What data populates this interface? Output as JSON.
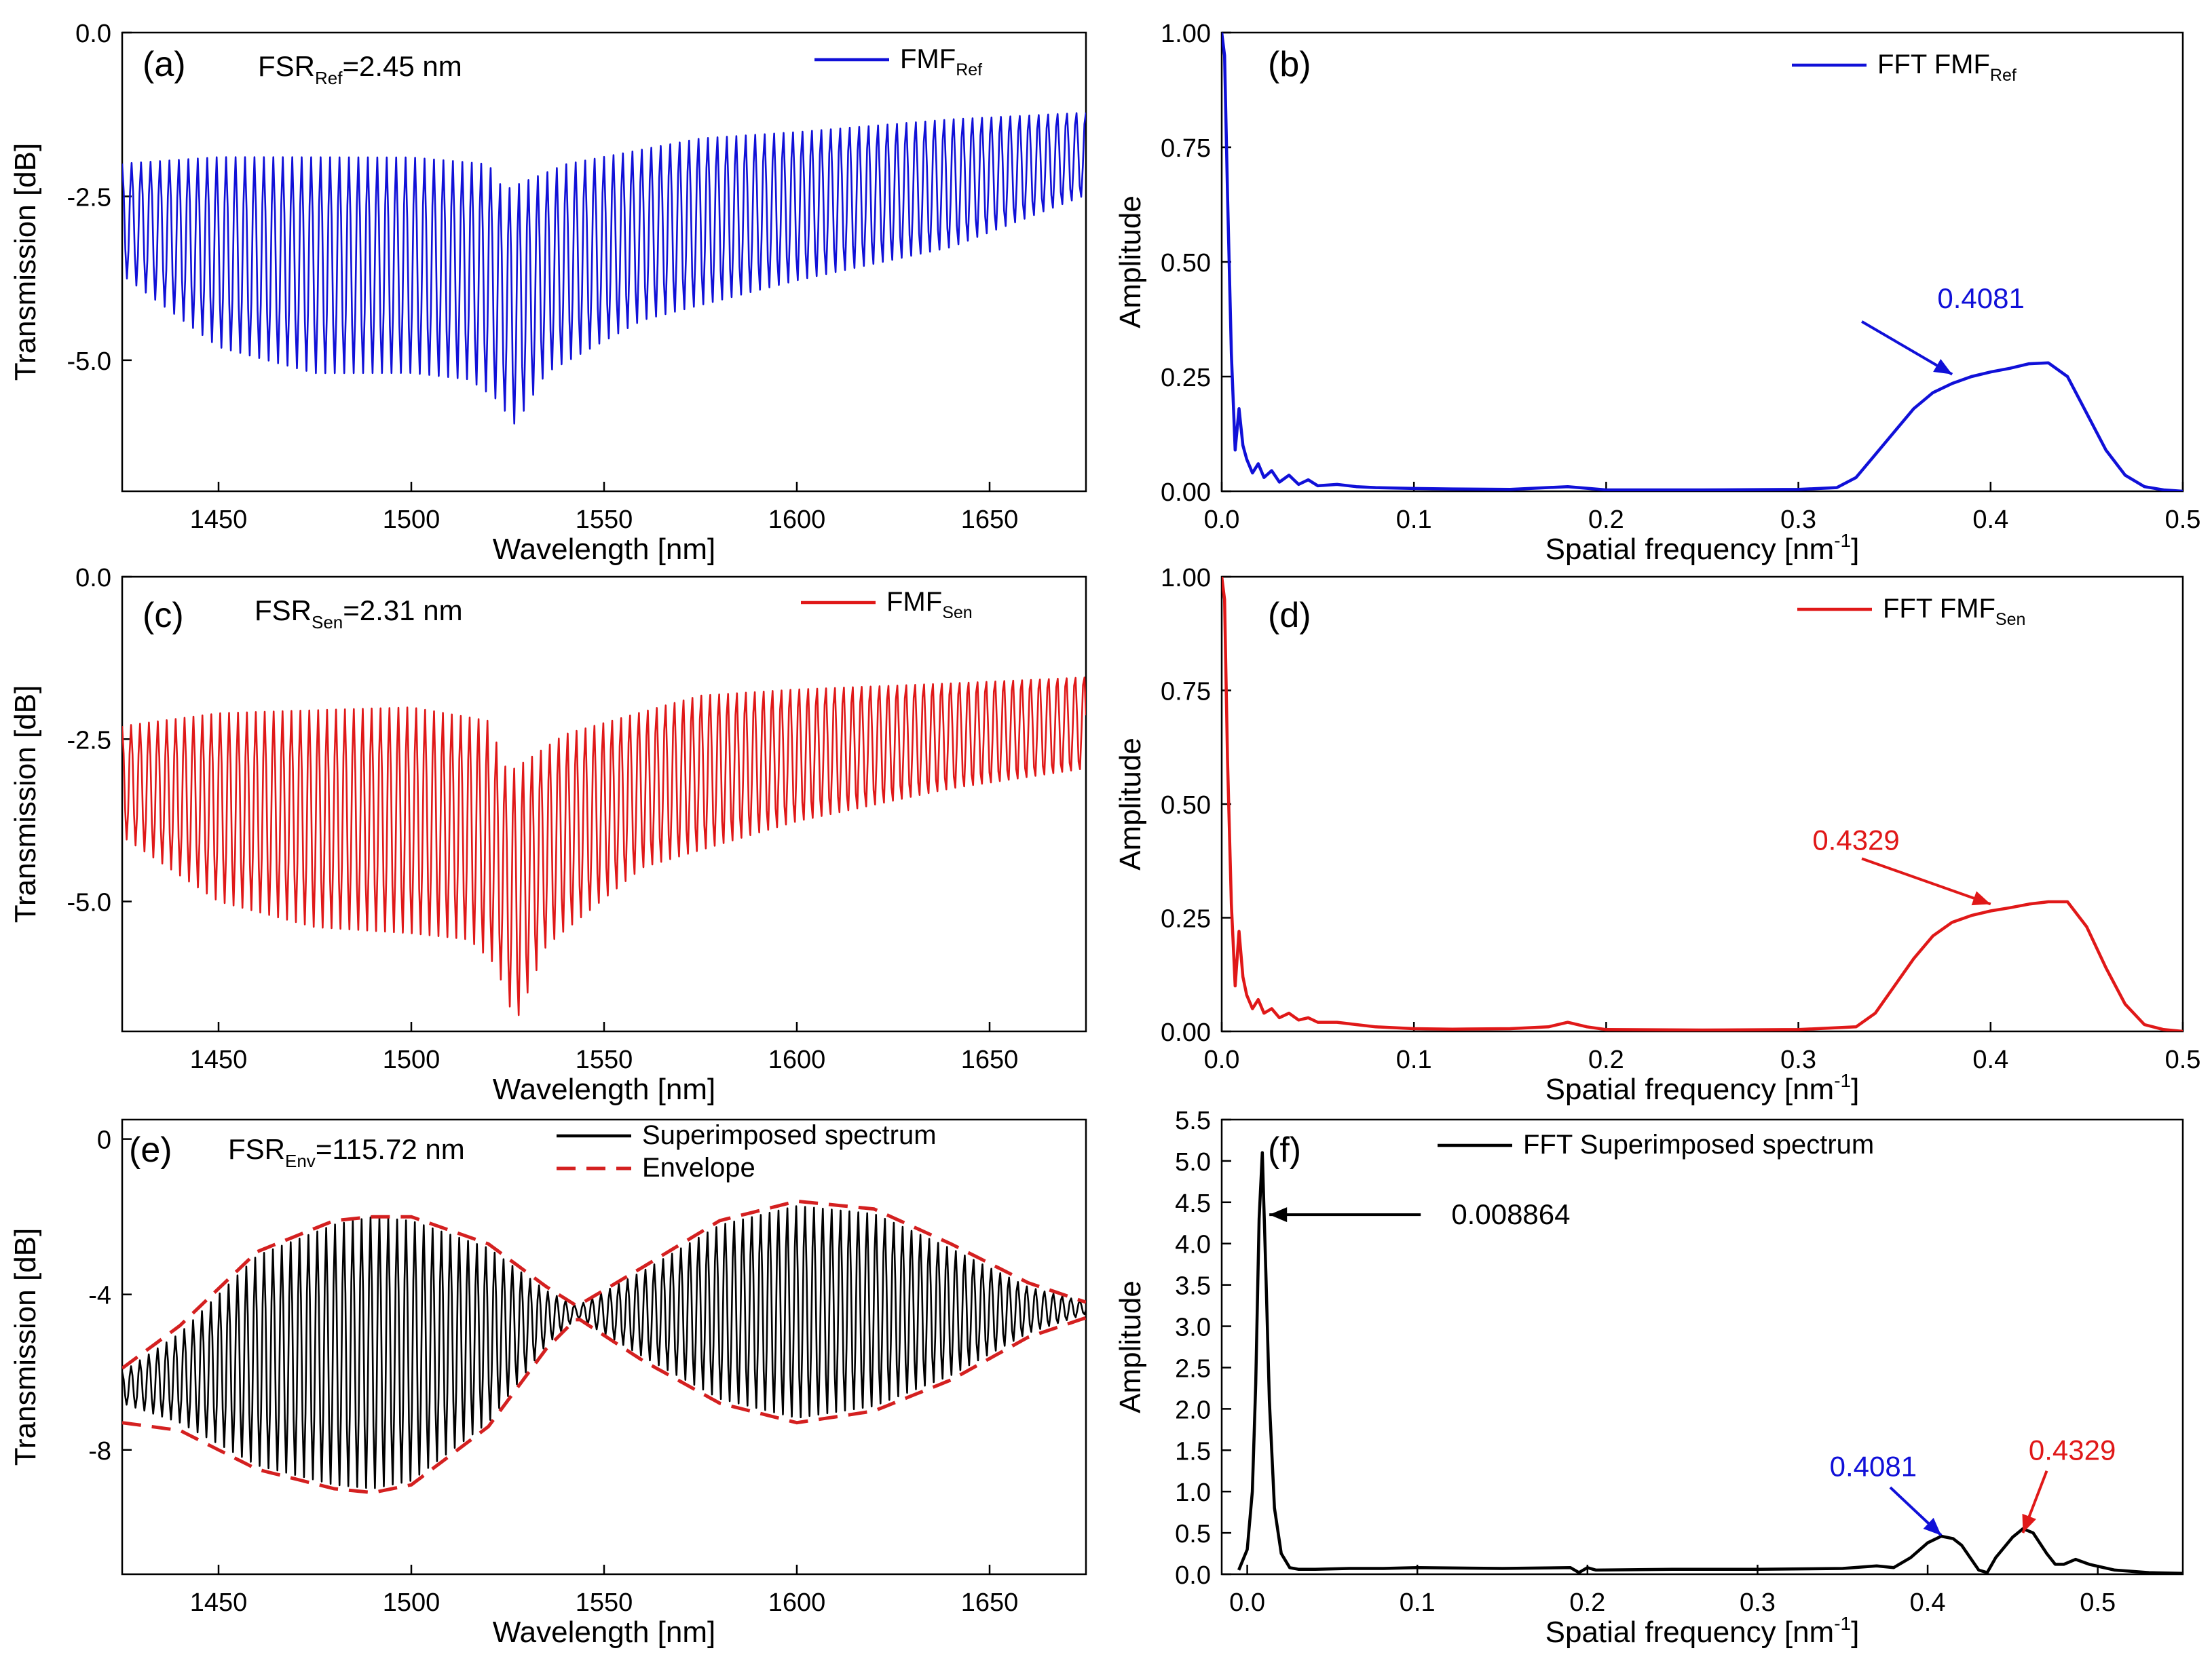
{
  "figure_title": "",
  "colors": {
    "blue": "#1010d8",
    "red": "#e01818",
    "black": "#000000",
    "envelope": "#d42020"
  },
  "chart_data": [
    {
      "id": "a",
      "type": "line",
      "panel_label": "(a)",
      "annotation_main": "FSR",
      "annotation_sub": "Ref",
      "annotation_rest": "=2.45 nm",
      "xlabel": "Wavelength [nm]",
      "ylabel": "Transmission [dB]",
      "xlim": [
        1425,
        1675
      ],
      "ylim": [
        -7.0,
        0.0
      ],
      "xticks": [
        1450,
        1500,
        1550,
        1600,
        1650
      ],
      "yticks": [
        "0.0",
        "-2.5",
        "-5.0"
      ],
      "yticks_values": [
        0.0,
        -2.5,
        -5.0
      ],
      "legend": [
        {
          "main": "FMF",
          "sub": "Ref",
          "color": "#1010d8",
          "style": "solid"
        }
      ],
      "series": [
        {
          "name": "FMF Ref",
          "color": "#1010d8",
          "fsr_nm": 2.45,
          "top_envelope": {
            "x": [
              1425,
              1450,
              1500,
              1520,
              1524,
              1540,
              1575,
              1600,
              1640,
              1675
            ],
            "y": [
              -2.0,
              -1.9,
              -1.9,
              -2.0,
              -2.4,
              -2.0,
              -1.6,
              -1.5,
              -1.3,
              -1.2
            ]
          },
          "bottom_envelope": {
            "x": [
              1425,
              1450,
              1475,
              1500,
              1515,
              1522,
              1527,
              1535,
              1560,
              1600,
              1640,
              1675
            ],
            "y": [
              -3.7,
              -4.8,
              -5.2,
              -5.2,
              -5.3,
              -5.6,
              -6.0,
              -5.2,
              -4.4,
              -3.8,
              -3.3,
              -2.5
            ]
          }
        }
      ]
    },
    {
      "id": "b",
      "type": "line",
      "panel_label": "(b)",
      "xlabel": "Spatial frequency [nm",
      "xlabel_sup": "-1",
      "xlabel_end": "]",
      "ylabel": "Amplitude",
      "xlim": [
        0.0,
        0.5
      ],
      "ylim": [
        0.0,
        1.0
      ],
      "xticks": [
        "0.0",
        "0.1",
        "0.2",
        "0.3",
        "0.4",
        "0.5"
      ],
      "xticks_values": [
        0.0,
        0.1,
        0.2,
        0.3,
        0.4,
        0.5
      ],
      "yticks": [
        "0.00",
        "0.25",
        "0.50",
        "0.75",
        "1.00"
      ],
      "yticks_values": [
        0.0,
        0.25,
        0.5,
        0.75,
        1.0
      ],
      "legend": [
        {
          "main": "FFT FMF",
          "sub": "Ref",
          "color": "#1010d8",
          "style": "solid"
        }
      ],
      "annotations": [
        {
          "text": "0.4081",
          "color": "#1010d8",
          "at": [
            0.395,
            0.95
          ],
          "arrow_to": [
            0.38,
            0.255
          ],
          "from": [
            0.333,
            0.37
          ]
        }
      ],
      "series": [
        {
          "name": "FFT FMF Ref",
          "color": "#1010d8",
          "x": [
            0.0,
            0.0015,
            0.003,
            0.005,
            0.007,
            0.009,
            0.011,
            0.013,
            0.016,
            0.019,
            0.022,
            0.026,
            0.03,
            0.035,
            0.04,
            0.045,
            0.05,
            0.06,
            0.07,
            0.08,
            0.1,
            0.12,
            0.15,
            0.18,
            0.2,
            0.25,
            0.3,
            0.32,
            0.33,
            0.34,
            0.35,
            0.36,
            0.37,
            0.38,
            0.39,
            0.4,
            0.41,
            0.42,
            0.43,
            0.44,
            0.45,
            0.46,
            0.47,
            0.48,
            0.49,
            0.5
          ],
          "values": [
            1.0,
            0.95,
            0.65,
            0.3,
            0.09,
            0.18,
            0.1,
            0.07,
            0.04,
            0.06,
            0.03,
            0.045,
            0.02,
            0.035,
            0.015,
            0.025,
            0.012,
            0.015,
            0.01,
            0.008,
            0.006,
            0.005,
            0.004,
            0.01,
            0.003,
            0.003,
            0.004,
            0.008,
            0.03,
            0.08,
            0.13,
            0.18,
            0.215,
            0.235,
            0.25,
            0.26,
            0.268,
            0.278,
            0.28,
            0.25,
            0.17,
            0.09,
            0.035,
            0.01,
            0.003,
            0.0
          ]
        }
      ]
    },
    {
      "id": "c",
      "type": "line",
      "panel_label": "(c)",
      "annotation_main": "FSR",
      "annotation_sub": "Sen",
      "annotation_rest": "=2.31 nm",
      "xlabel": "Wavelength [nm]",
      "ylabel": "Transmission [dB]",
      "xlim": [
        1425,
        1675
      ],
      "ylim": [
        -7.0,
        0.0
      ],
      "xticks": [
        1450,
        1500,
        1550,
        1600,
        1650
      ],
      "yticks": [
        "0.0",
        "-2.5",
        "-5.0"
      ],
      "yticks_values": [
        0.0,
        -2.5,
        -5.0
      ],
      "legend": [
        {
          "main": "FMF",
          "sub": "Sen",
          "color": "#e01818",
          "style": "solid"
        }
      ],
      "series": [
        {
          "name": "FMF Sen",
          "color": "#e01818",
          "fsr_nm": 2.31,
          "top_envelope": {
            "x": [
              1425,
              1450,
              1500,
              1520,
              1525,
              1540,
              1575,
              1600,
              1640,
              1675
            ],
            "y": [
              -2.3,
              -2.1,
              -2.0,
              -2.2,
              -3.0,
              -2.4,
              -1.8,
              -1.7,
              -1.6,
              -1.5
            ]
          },
          "bottom_envelope": {
            "x": [
              1425,
              1450,
              1475,
              1500,
              1515,
              1522,
              1527,
              1535,
              1560,
              1600,
              1640,
              1675
            ],
            "y": [
              -4.0,
              -5.0,
              -5.4,
              -5.5,
              -5.6,
              -6.0,
              -6.9,
              -5.7,
              -4.5,
              -3.8,
              -3.3,
              -3.0
            ]
          }
        }
      ]
    },
    {
      "id": "d",
      "type": "line",
      "panel_label": "(d)",
      "xlabel": "Spatial frequency [nm",
      "xlabel_sup": "-1",
      "xlabel_end": "]",
      "ylabel": "Amplitude",
      "xlim": [
        0.0,
        0.5
      ],
      "ylim": [
        0.0,
        1.0
      ],
      "xticks": [
        "0.0",
        "0.1",
        "0.2",
        "0.3",
        "0.4",
        "0.5"
      ],
      "xticks_values": [
        0.0,
        0.1,
        0.2,
        0.3,
        0.4,
        0.5
      ],
      "yticks": [
        "0.00",
        "0.25",
        "0.50",
        "0.75",
        "1.00"
      ],
      "yticks_values": [
        0.0,
        0.25,
        0.5,
        0.75,
        1.0
      ],
      "legend": [
        {
          "main": "FFT FMF",
          "sub": "Sen",
          "color": "#e01818",
          "style": "solid"
        }
      ],
      "annotations": [
        {
          "text": "0.4329",
          "color": "#e01818",
          "at": [
            0.33,
            0.95
          ],
          "arrow_to": [
            0.4,
            0.28
          ],
          "from": [
            0.333,
            0.38
          ]
        }
      ],
      "series": [
        {
          "name": "FFT FMF Sen",
          "color": "#e01818",
          "x": [
            0.0,
            0.0015,
            0.003,
            0.005,
            0.007,
            0.009,
            0.011,
            0.013,
            0.016,
            0.019,
            0.022,
            0.026,
            0.03,
            0.035,
            0.04,
            0.045,
            0.05,
            0.06,
            0.07,
            0.08,
            0.1,
            0.12,
            0.15,
            0.17,
            0.18,
            0.19,
            0.2,
            0.25,
            0.3,
            0.33,
            0.34,
            0.35,
            0.36,
            0.37,
            0.38,
            0.39,
            0.4,
            0.41,
            0.42,
            0.43,
            0.44,
            0.45,
            0.46,
            0.47,
            0.48,
            0.49,
            0.5
          ],
          "values": [
            1.0,
            0.95,
            0.6,
            0.28,
            0.1,
            0.22,
            0.12,
            0.08,
            0.05,
            0.07,
            0.04,
            0.05,
            0.03,
            0.04,
            0.025,
            0.03,
            0.02,
            0.02,
            0.015,
            0.01,
            0.006,
            0.005,
            0.006,
            0.01,
            0.02,
            0.01,
            0.004,
            0.003,
            0.004,
            0.01,
            0.04,
            0.1,
            0.16,
            0.21,
            0.24,
            0.255,
            0.265,
            0.272,
            0.28,
            0.285,
            0.285,
            0.23,
            0.14,
            0.06,
            0.015,
            0.004,
            0.0
          ]
        }
      ]
    },
    {
      "id": "e",
      "type": "line",
      "panel_label": "(e)",
      "annotation_main": "FSR",
      "annotation_sub": "Env",
      "annotation_rest": "=115.72 nm",
      "xlabel": "Wavelength [nm]",
      "ylabel": "Transmission [dB]",
      "xlim": [
        1425,
        1675
      ],
      "ylim": [
        -11.2,
        0.5
      ],
      "xticks": [
        1450,
        1500,
        1550,
        1600,
        1650
      ],
      "yticks": [
        "0",
        "-4",
        "-8"
      ],
      "yticks_values": [
        0,
        -4,
        -8
      ],
      "legend": [
        {
          "main": "Superimposed spectrum",
          "sub": "",
          "color": "#000000",
          "style": "solid"
        },
        {
          "main": "Envelope",
          "sub": "",
          "color": "#d42020",
          "style": "dashed"
        }
      ],
      "series": [
        {
          "name": "Superimposed spectrum",
          "color": "#000000",
          "fsr_nm": 2.3,
          "top_envelope": {
            "x": [
              1425,
              1440,
              1460,
              1480,
              1490,
              1500,
              1520,
              1535,
              1543,
              1560,
              1580,
              1600,
              1620,
              1640,
              1660,
              1675
            ],
            "y": [
              -6.0,
              -5.0,
              -3.0,
              -2.2,
              -2.0,
              -2.1,
              -2.8,
              -3.9,
              -4.3,
              -3.4,
              -2.2,
              -1.7,
              -1.9,
              -2.8,
              -3.8,
              -4.2
            ]
          },
          "bottom_envelope": {
            "x": [
              1425,
              1440,
              1460,
              1480,
              1490,
              1500,
              1520,
              1535,
              1543,
              1560,
              1580,
              1600,
              1620,
              1640,
              1660,
              1675
            ],
            "y": [
              -6.8,
              -7.3,
              -8.4,
              -8.9,
              -9.0,
              -8.8,
              -7.3,
              -5.3,
              -4.6,
              -5.6,
              -6.7,
              -7.2,
              -6.9,
              -6.1,
              -5.0,
              -4.5
            ]
          }
        },
        {
          "name": "Envelope",
          "color": "#d42020",
          "style": "dashed",
          "upper": {
            "x": [
              1425,
              1440,
              1460,
              1480,
              1490,
              1500,
              1520,
              1535,
              1543,
              1560,
              1580,
              1600,
              1620,
              1640,
              1660,
              1675
            ],
            "y": [
              -5.9,
              -4.8,
              -2.9,
              -2.1,
              -2.0,
              -2.0,
              -2.7,
              -3.8,
              -4.3,
              -3.3,
              -2.1,
              -1.6,
              -1.8,
              -2.7,
              -3.7,
              -4.2
            ]
          },
          "lower": {
            "x": [
              1425,
              1440,
              1460,
              1480,
              1490,
              1500,
              1520,
              1535,
              1543,
              1560,
              1580,
              1600,
              1620,
              1640,
              1660,
              1675
            ],
            "y": [
              -7.3,
              -7.5,
              -8.5,
              -9.0,
              -9.1,
              -8.9,
              -7.4,
              -5.4,
              -4.6,
              -5.7,
              -6.8,
              -7.3,
              -7.0,
              -6.2,
              -5.1,
              -4.6
            ]
          }
        }
      ]
    },
    {
      "id": "f",
      "type": "line",
      "panel_label": "(f)",
      "xlabel": "Spatial frequency [nm",
      "xlabel_sup": "-1",
      "xlabel_end": "]",
      "ylabel": "Amplitude",
      "xlim": [
        -0.015,
        0.55
      ],
      "ylim": [
        0.0,
        5.5
      ],
      "xticks": [
        "0.0",
        "0.1",
        "0.2",
        "0.3",
        "0.4",
        "0.5"
      ],
      "xticks_values": [
        0.0,
        0.1,
        0.2,
        0.3,
        0.4,
        0.5
      ],
      "yticks": [
        "0.0",
        "0.5",
        "1.0",
        "1.5",
        "2.0",
        "2.5",
        "3.0",
        "3.5",
        "4.0",
        "4.5",
        "5.0",
        "5.5"
      ],
      "yticks_values": [
        0.0,
        0.5,
        1.0,
        1.5,
        2.0,
        2.5,
        3.0,
        3.5,
        4.0,
        4.5,
        5.0,
        5.5
      ],
      "legend": [
        {
          "main": "FFT Superimposed spectrum",
          "sub": "",
          "color": "#000000",
          "style": "solid"
        }
      ],
      "annotations": [
        {
          "text": "0.008864",
          "color": "#000000",
          "at": [
            0.12,
            4.35
          ],
          "arrow_to": [
            0.013,
            4.35
          ],
          "from": [
            0.102,
            4.35
          ]
        },
        {
          "text": "0.4081",
          "color": "#1010d8",
          "at": [
            0.368,
            1.3
          ],
          "arrow_to": [
            0.408,
            0.47
          ],
          "from": [
            0.378,
            1.05
          ]
        },
        {
          "text": "0.4329",
          "color": "#e01818",
          "at": [
            0.485,
            1.5
          ],
          "arrow_to": [
            0.456,
            0.5
          ],
          "from": [
            0.47,
            1.25
          ]
        }
      ],
      "series": [
        {
          "name": "FFT Superimposed spectrum",
          "color": "#000000",
          "x": [
            -0.005,
            0.0,
            0.003,
            0.005,
            0.007,
            0.008864,
            0.011,
            0.013,
            0.016,
            0.02,
            0.025,
            0.03,
            0.04,
            0.06,
            0.08,
            0.1,
            0.15,
            0.19,
            0.195,
            0.2,
            0.205,
            0.25,
            0.3,
            0.35,
            0.37,
            0.38,
            0.39,
            0.4,
            0.408,
            0.415,
            0.42,
            0.43,
            0.435,
            0.44,
            0.45,
            0.456,
            0.462,
            0.47,
            0.475,
            0.48,
            0.487,
            0.495,
            0.51,
            0.53,
            0.55
          ],
          "values": [
            0.05,
            0.3,
            1.0,
            2.3,
            4.3,
            5.1,
            3.6,
            2.1,
            0.8,
            0.25,
            0.08,
            0.06,
            0.06,
            0.07,
            0.07,
            0.08,
            0.07,
            0.08,
            0.02,
            0.08,
            0.05,
            0.06,
            0.06,
            0.07,
            0.1,
            0.08,
            0.2,
            0.38,
            0.46,
            0.43,
            0.35,
            0.05,
            0.02,
            0.2,
            0.45,
            0.55,
            0.5,
            0.25,
            0.12,
            0.12,
            0.18,
            0.12,
            0.05,
            0.02,
            0.01
          ]
        }
      ]
    }
  ]
}
